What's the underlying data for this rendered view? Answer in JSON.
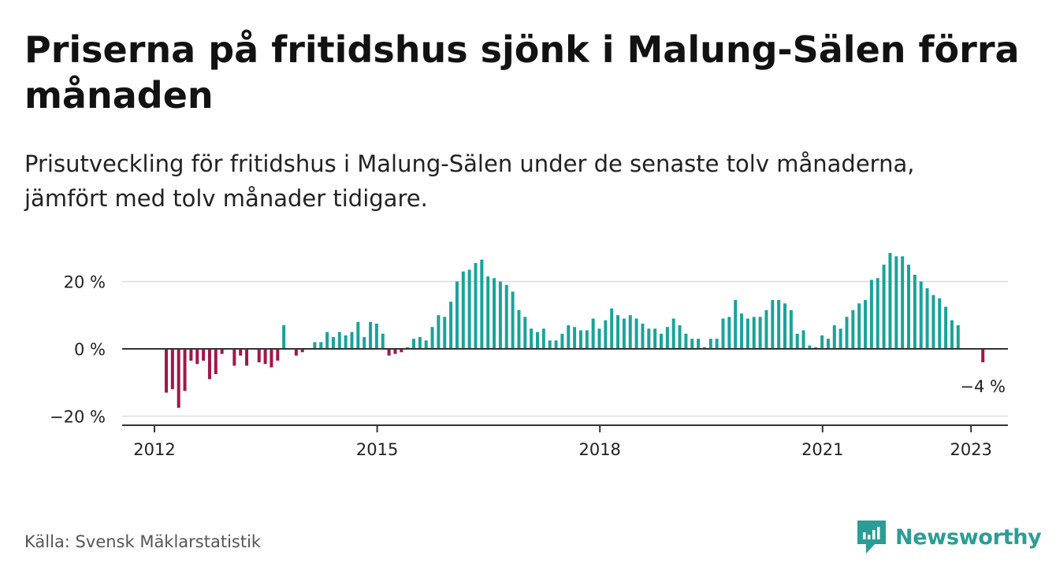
{
  "title": "Priserna på fritidshus sjönk i Malung-Sälen förra månaden",
  "subtitle": "Prisutveckling för fritidshus i Malung-Sälen under de senaste tolv månaderna, jämfört med tolv månader tidigare.",
  "source": "Källa: Svensk Mäklarstatistik",
  "brand": {
    "name": "Newsworthy",
    "icon": "newsworthy-logo-icon",
    "color": "#2a9d96"
  },
  "colors": {
    "positive": "#19a39a",
    "negative": "#a3154a",
    "zero_line": "#333333",
    "grid": "#dddddd"
  },
  "chart_data": {
    "type": "bar",
    "x_start": "2012-01",
    "x_end": "2023-01",
    "ylim": [
      -22,
      33
    ],
    "yticks": [
      -20,
      0,
      20
    ],
    "ytick_labels": [
      "−20 %",
      "0 %",
      "20 %"
    ],
    "xticks": [
      "2012",
      "2015",
      "2018",
      "2021",
      "2023"
    ],
    "grid": true,
    "annotation": {
      "date": "2023-01",
      "value": -4,
      "label": "−4 %"
    },
    "values": [
      -13,
      -12,
      -17.5,
      -12.5,
      -3.5,
      -4.5,
      -3.5,
      -9,
      -7.5,
      -1.5,
      0,
      -5,
      -2,
      -5,
      0,
      -4,
      -4.5,
      -5.5,
      -3.5,
      7,
      0,
      -2,
      -1,
      0,
      2,
      2,
      5,
      3.5,
      5,
      4,
      5,
      8,
      3.5,
      8,
      7.5,
      4.5,
      -2,
      -1.5,
      -1,
      0.5,
      3,
      3.5,
      2.5,
      6.5,
      10,
      9.5,
      14,
      20,
      23,
      23.5,
      25.5,
      26.5,
      21.5,
      21,
      20,
      19,
      17,
      11.5,
      9.5,
      6,
      5,
      6,
      2.5,
      2.5,
      4.5,
      7,
      6.5,
      5.5,
      5.5,
      9,
      6,
      8.5,
      12,
      10,
      9,
      10,
      9,
      7.5,
      6,
      6,
      4.5,
      6.5,
      9,
      7,
      4.5,
      3,
      3,
      0.5,
      3,
      3,
      9,
      9.5,
      14.5,
      10.5,
      9,
      9.5,
      9.5,
      11.5,
      14.5,
      14.5,
      13.5,
      11.5,
      4.5,
      5.5,
      1,
      0.5,
      4,
      3,
      7,
      6,
      9.5,
      11.5,
      13.5,
      14.5,
      20.5,
      21,
      25,
      28.5,
      27.5,
      27.5,
      25,
      22,
      20,
      18,
      16,
      15,
      12.5,
      8.5,
      7,
      0,
      0,
      0,
      -4
    ]
  }
}
